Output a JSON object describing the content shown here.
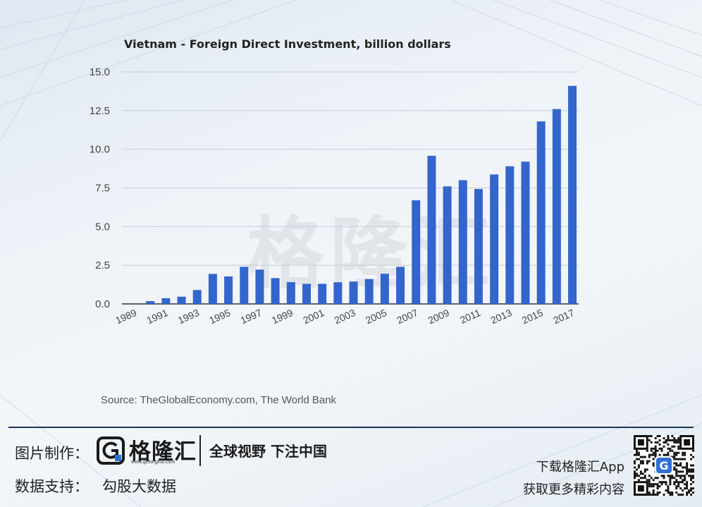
{
  "chart_data": {
    "type": "bar",
    "title": "Vietnam - Foreign Direct Investment, billion dollars",
    "xlabel": "",
    "ylabel": "",
    "ylim": [
      0,
      15
    ],
    "yticks": [
      "0.0",
      "2.5",
      "5.0",
      "7.5",
      "10.0",
      "12.5",
      "15.0"
    ],
    "xtick_labels": [
      "1989",
      "1991",
      "1993",
      "1995",
      "1997",
      "1999",
      "2001",
      "2003",
      "2005",
      "2007",
      "2009",
      "2011",
      "2013",
      "2015",
      "2017"
    ],
    "categories": [
      "1989",
      "1990",
      "1991",
      "1992",
      "1993",
      "1994",
      "1995",
      "1996",
      "1997",
      "1998",
      "1999",
      "2000",
      "2001",
      "2002",
      "2003",
      "2004",
      "2005",
      "2006",
      "2007",
      "2008",
      "2009",
      "2010",
      "2011",
      "2012",
      "2013",
      "2014",
      "2015",
      "2016",
      "2017"
    ],
    "values": [
      0.0,
      0.18,
      0.37,
      0.47,
      0.9,
      1.94,
      1.78,
      2.4,
      2.22,
      1.67,
      1.41,
      1.3,
      1.3,
      1.4,
      1.45,
      1.61,
      1.95,
      2.4,
      6.7,
      9.58,
      7.6,
      8.0,
      7.43,
      8.37,
      8.9,
      9.2,
      11.8,
      12.6,
      14.1
    ],
    "grid": true,
    "bar_color": "#3366cc"
  },
  "source_text": "Source: TheGlobalEconomy.com, The World Bank",
  "watermark": "格隆汇",
  "footer": {
    "made_by_label": "图片制作：",
    "brand_name": "格隆汇",
    "brand_url": "www.gelonghui.com",
    "slogan": "全球视野 下注中国",
    "data_support_label": "数据支持：",
    "data_support_value": "勾股大数据",
    "app_line1": "下载格隆汇App",
    "app_line2": "获取更多精彩内容",
    "logo_letter": "G"
  }
}
